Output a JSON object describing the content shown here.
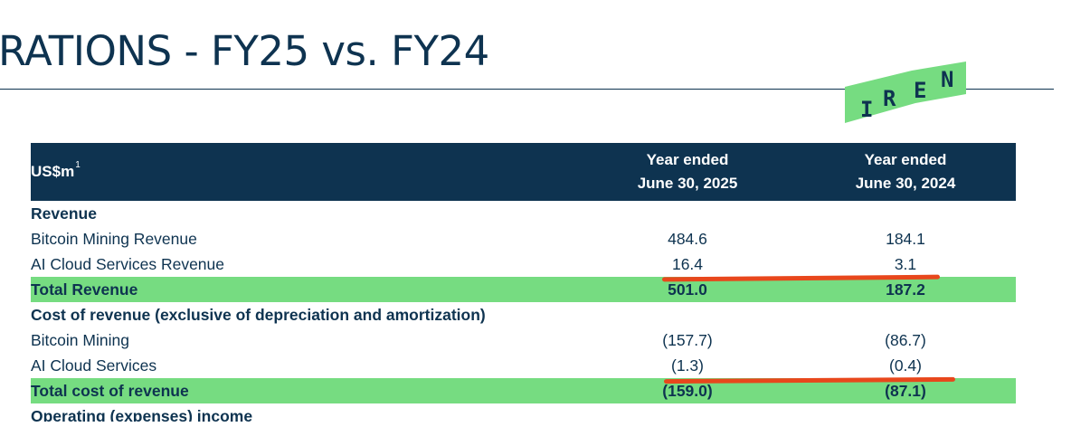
{
  "slide": {
    "title": "RATIONS - FY25 vs. FY24",
    "logo": {
      "letters": [
        "I",
        "R",
        "E",
        "N"
      ],
      "color": "#76dc81"
    }
  },
  "table": {
    "unit_label": "US$m",
    "unit_footnote": "1",
    "columns": [
      {
        "line1": "Year ended",
        "line2": "June 30, 2025"
      },
      {
        "line1": "Year ended",
        "line2": "June 30, 2024"
      }
    ],
    "rows": [
      {
        "label": "Revenue",
        "type": "section",
        "values": [
          "",
          ""
        ]
      },
      {
        "label": "Bitcoin Mining Revenue",
        "type": "item",
        "values": [
          "484.6",
          "184.1"
        ]
      },
      {
        "label": "AI Cloud Services Revenue",
        "type": "item",
        "values": [
          "16.4",
          "3.1"
        ]
      },
      {
        "label": "Total Revenue",
        "type": "total",
        "values": [
          "501.0",
          "187.2"
        ]
      },
      {
        "label": "Cost of revenue (exclusive of depreciation and amortization)",
        "type": "section",
        "values": [
          "",
          ""
        ]
      },
      {
        "label": "Bitcoin Mining",
        "type": "item",
        "values": [
          "(157.7)",
          "(86.7)"
        ]
      },
      {
        "label": "AI Cloud Services",
        "type": "item",
        "values": [
          "(1.3)",
          "(0.4)"
        ]
      },
      {
        "label": "Total cost of revenue",
        "type": "total",
        "values": [
          "(159.0)",
          "(87.1)"
        ]
      },
      {
        "label": "Operating (expenses) income",
        "type": "section",
        "values": [
          "",
          ""
        ]
      }
    ]
  },
  "colors": {
    "navy": "#0e3350",
    "highlight_green": "#76dc81",
    "marker_red": "#e8471c"
  }
}
